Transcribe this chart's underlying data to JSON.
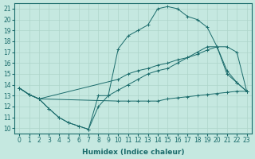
{
  "xlabel": "Humidex (Indice chaleur)",
  "xlim": [
    -0.5,
    23.5
  ],
  "ylim": [
    9.5,
    21.5
  ],
  "xticks": [
    0,
    1,
    2,
    3,
    4,
    5,
    6,
    7,
    8,
    9,
    10,
    11,
    12,
    13,
    14,
    15,
    16,
    17,
    18,
    19,
    20,
    21,
    22,
    23
  ],
  "yticks": [
    10,
    11,
    12,
    13,
    14,
    15,
    16,
    17,
    18,
    19,
    20,
    21
  ],
  "bg_color": "#c5e8e0",
  "line_color": "#1a6b6b",
  "grid_color": "#aed4ca",
  "lines": [
    {
      "x": [
        0,
        1,
        2,
        10,
        11,
        12,
        13,
        14,
        15,
        16,
        17,
        18,
        19,
        20,
        21,
        22,
        23
      ],
      "y": [
        13.7,
        13.1,
        12.7,
        12.5,
        12.5,
        12.5,
        12.5,
        12.5,
        12.7,
        12.8,
        12.9,
        13.0,
        13.1,
        13.2,
        13.3,
        13.4,
        13.4
      ]
    },
    {
      "x": [
        0,
        1,
        2,
        3,
        4,
        5,
        6,
        7,
        8,
        9,
        10,
        11,
        12,
        13,
        14,
        15,
        16,
        17,
        18,
        19,
        20,
        21,
        22,
        23
      ],
      "y": [
        13.7,
        13.1,
        12.7,
        11.8,
        11.0,
        10.5,
        10.2,
        9.9,
        12.0,
        13.0,
        13.5,
        14.0,
        14.5,
        15.0,
        15.3,
        15.5,
        16.0,
        16.5,
        17.0,
        17.5,
        17.5,
        15.0,
        14.2,
        13.4
      ]
    },
    {
      "x": [
        0,
        1,
        2,
        10,
        11,
        12,
        13,
        14,
        15,
        16,
        17,
        18,
        19,
        20,
        21,
        22,
        23
      ],
      "y": [
        13.7,
        13.1,
        12.7,
        14.5,
        15.0,
        15.3,
        15.5,
        15.8,
        16.0,
        16.3,
        16.5,
        16.8,
        17.2,
        17.5,
        17.5,
        17.0,
        13.4
      ]
    },
    {
      "x": [
        0,
        1,
        2,
        3,
        4,
        5,
        6,
        7,
        8,
        9,
        10,
        11,
        12,
        13,
        14,
        15,
        16,
        17,
        18,
        19,
        20,
        21,
        22,
        23
      ],
      "y": [
        13.7,
        13.1,
        12.7,
        11.8,
        11.0,
        10.5,
        10.2,
        9.9,
        13.0,
        13.0,
        17.3,
        18.5,
        19.0,
        19.5,
        21.0,
        21.2,
        21.0,
        20.3,
        20.0,
        19.3,
        17.5,
        15.3,
        14.2,
        13.4
      ]
    }
  ],
  "axis_fontsize": 6.5,
  "tick_fontsize": 5.5
}
